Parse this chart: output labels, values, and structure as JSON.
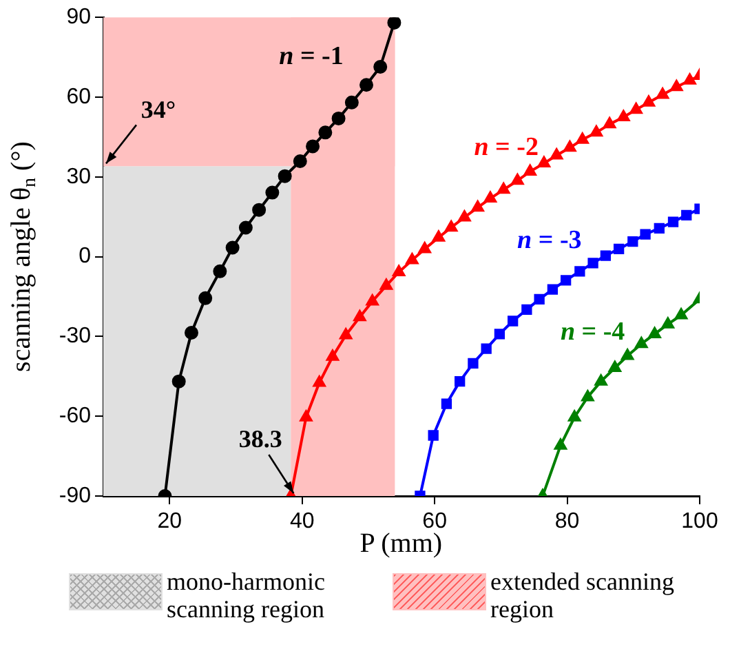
{
  "chart_data": {
    "type": "line",
    "xlabel": "P (mm)",
    "ylabel": "scanning angle θ$_{n}$ (°)",
    "xlim": [
      10,
      100
    ],
    "xticks": [
      20,
      40,
      60,
      80,
      100
    ],
    "ylim": [
      -90,
      90
    ],
    "yticks": [
      -90,
      -60,
      -30,
      0,
      30,
      60,
      90
    ],
    "grid": false,
    "legend": "bottom",
    "line_style": "solid",
    "series": [
      {
        "name": "n = -1",
        "color": "#000000",
        "marker": "circle",
        "x": [
          19.3,
          21.4,
          23.3,
          25.4,
          27.6,
          29.5,
          31.5,
          33.5,
          35.5,
          37.4,
          39.7,
          41.6,
          43.5,
          45.5,
          47.5,
          49.7,
          51.8,
          53.9
        ],
        "values": [
          -90,
          -46.9,
          -28.6,
          -15.6,
          -5.5,
          3.4,
          10.9,
          17.6,
          24.1,
          30.3,
          35.9,
          41.5,
          46.7,
          52,
          58,
          64.6,
          71.4,
          88
        ]
      },
      {
        "name": "n = -2",
        "color": "#ff0000",
        "marker": "triangle",
        "x": [
          38.3,
          40.6,
          42.6,
          44.6,
          46.6,
          48.7,
          50.6,
          52.7,
          54.6,
          56.6,
          58.5,
          60.6,
          62.5,
          64.5,
          66.5,
          68.4,
          70.4,
          72.5,
          74.4,
          76.5,
          78.4,
          80.4,
          82.3,
          84.4,
          86.4,
          88.5,
          90.4,
          92.3,
          94.4,
          96.5,
          98.5,
          100
        ],
        "values": [
          -90,
          -60.4,
          -47.4,
          -37.6,
          -29.5,
          -22.7,
          -16.8,
          -10.9,
          -5.8,
          -1.3,
          2.9,
          7.2,
          11,
          14.8,
          18.5,
          21.9,
          25.2,
          28.6,
          32,
          35.1,
          38.1,
          41,
          44,
          46.7,
          49.8,
          52.5,
          55.3,
          58,
          60.9,
          63.8,
          66.3,
          68
        ]
      },
      {
        "name": "n = -3",
        "color": "#0000ff",
        "marker": "square",
        "x": [
          57.8,
          59.8,
          61.8,
          63.8,
          65.8,
          67.8,
          69.8,
          71.8,
          73.9,
          75.8,
          77.8,
          79.8,
          81.9,
          83.9,
          85.8,
          87.8,
          89.9,
          91.8,
          93.9,
          96,
          98,
          100
        ],
        "values": [
          -90,
          -67.2,
          -55.3,
          -46.9,
          -40.1,
          -34.6,
          -29.1,
          -24.2,
          -19.9,
          -16,
          -12.3,
          -8.9,
          -5.5,
          -2.4,
          0.4,
          2.9,
          5.7,
          8.4,
          10.7,
          13.1,
          15.6,
          18
        ]
      },
      {
        "name": "n = -4",
        "color": "#008000",
        "marker": "triangle",
        "x": [
          76.3,
          79,
          81.1,
          83.1,
          85.1,
          87.2,
          89.1,
          91.2,
          93.2,
          95.2,
          97.2,
          100
        ],
        "values": [
          -90,
          -71,
          -60.4,
          -52.8,
          -46.9,
          -41.8,
          -37.3,
          -32.8,
          -29.1,
          -25.4,
          -22,
          -16
        ]
      }
    ],
    "bands": [
      {
        "axis": "x",
        "from": 10,
        "to": 38.3,
        "label": "mono-harmonic scanning region",
        "color": "#e0e0e0"
      },
      {
        "axis": "x",
        "from": 38.3,
        "to": 54,
        "label": "extended scanning region",
        "color": "#ffc0c0"
      },
      {
        "axis": "y",
        "from": 34,
        "to": 90,
        "color": "#ffc0c0"
      }
    ],
    "annotations": [
      {
        "text": "34°",
        "x": 10,
        "y": 34
      },
      {
        "text": "38.3",
        "x": 38.3,
        "y": -90
      }
    ]
  }
}
